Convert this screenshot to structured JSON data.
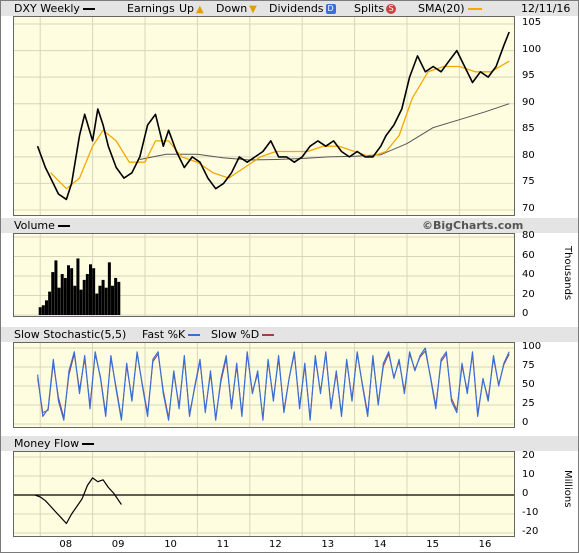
{
  "header": {
    "symbol_label": "DXY Weekly",
    "earnings_label": "Earnings",
    "up_label": "Up",
    "down_label": "Down",
    "dividends_label": "Dividends",
    "dividends_marker": "D",
    "splits_label": "Splits",
    "splits_marker": "S",
    "sma_label": "SMA(20)",
    "date_label": "12/11/16"
  },
  "volume_header": {
    "label": "Volume",
    "watermark": "©BigCharts.com"
  },
  "stoch_header": {
    "label": "Slow Stochastic(5,5)",
    "fast_label": "Fast %K",
    "slow_label": "Slow %D"
  },
  "money_header": {
    "label": "Money Flow"
  },
  "colors": {
    "panel_bg": "#fffde0",
    "header_bg": "#e4e4e4",
    "price": "#000000",
    "sma_short": "#f5a800",
    "sma_long": "#555555",
    "fast_k": "#3a6fd8",
    "slow_d": "#a04040",
    "volume": "#000000",
    "dividend_marker": "#3a6fd8",
    "split_marker": "#d04040",
    "up_marker": "#e0a000"
  },
  "chart_data": [
    {
      "type": "line",
      "panel": "price",
      "ylim": [
        70,
        105
      ],
      "y_ticks": [
        "105",
        "100",
        "95",
        "90",
        "85",
        "80",
        "75",
        "70"
      ],
      "x_ticks": [
        "08",
        "09",
        "10",
        "11",
        "12",
        "13",
        "14",
        "15",
        "16"
      ],
      "last_date": "12/11/16",
      "series": [
        {
          "name": "DXY Weekly",
          "x": [
            2007.95,
            2008.1,
            2008.2,
            2008.35,
            2008.5,
            2008.6,
            2008.75,
            2008.85,
            2009.0,
            2009.1,
            2009.2,
            2009.3,
            2009.45,
            2009.6,
            2009.75,
            2009.9,
            2010.05,
            2010.2,
            2010.35,
            2010.45,
            2010.6,
            2010.75,
            2010.9,
            2011.05,
            2011.2,
            2011.35,
            2011.5,
            2011.65,
            2011.8,
            2011.95,
            2012.1,
            2012.25,
            2012.4,
            2012.55,
            2012.7,
            2012.85,
            2013.0,
            2013.15,
            2013.3,
            2013.45,
            2013.6,
            2013.75,
            2013.9,
            2014.05,
            2014.2,
            2014.35,
            2014.5,
            2014.6,
            2014.75,
            2014.9,
            2015.05,
            2015.2,
            2015.35,
            2015.5,
            2015.65,
            2015.8,
            2015.95,
            2016.1,
            2016.25,
            2016.4,
            2016.55,
            2016.7,
            2016.85,
            2016.95
          ],
          "values": [
            82,
            78,
            76,
            73,
            72,
            75,
            84,
            88,
            83,
            89,
            86,
            82,
            78,
            76,
            77,
            80,
            86,
            88,
            82,
            85,
            81,
            78,
            80,
            79,
            76,
            74,
            75,
            77,
            80,
            79,
            80,
            81,
            83,
            80,
            80,
            79,
            80,
            82,
            83,
            82,
            83,
            81,
            80,
            81,
            80,
            80,
            82,
            84,
            86,
            89,
            95,
            99,
            96,
            97,
            96,
            98,
            100,
            97,
            94,
            96,
            95,
            97,
            101,
            103.5
          ]
        },
        {
          "name": "SMA(20)",
          "x": [
            2008.2,
            2008.5,
            2008.75,
            2009.0,
            2009.2,
            2009.45,
            2009.7,
            2010.0,
            2010.2,
            2010.45,
            2010.7,
            2011.0,
            2011.3,
            2011.6,
            2011.9,
            2012.2,
            2012.5,
            2012.8,
            2013.1,
            2013.4,
            2013.7,
            2014.0,
            2014.3,
            2014.6,
            2014.85,
            2015.1,
            2015.4,
            2015.7,
            2016.0,
            2016.3,
            2016.6,
            2016.95
          ],
          "values": [
            77,
            74,
            76,
            82,
            85,
            83,
            79,
            79,
            83,
            83,
            80,
            79,
            77,
            76,
            78,
            80,
            81,
            81,
            81,
            82,
            82,
            81,
            80,
            81,
            84,
            91,
            96,
            97,
            97,
            96,
            96,
            98
          ]
        },
        {
          "name": "SMA long",
          "x": [
            2009.9,
            2010.4,
            2011.0,
            2011.5,
            2012.0,
            2012.5,
            2013.0,
            2013.5,
            2014.0,
            2014.5,
            2015.0,
            2015.5,
            2016.0,
            2016.5,
            2016.95
          ],
          "values": [
            79.5,
            80.5,
            80.5,
            79.8,
            79.4,
            79.5,
            79.7,
            80.0,
            80.1,
            80.4,
            82.5,
            85.5,
            87,
            88.5,
            90
          ]
        }
      ]
    },
    {
      "type": "bar",
      "panel": "volume",
      "ylabel": "Thousands",
      "ylim": [
        0,
        80
      ],
      "y_ticks": [
        "80",
        "60",
        "40",
        "20",
        "0"
      ],
      "x": [
        2008.0,
        2008.06,
        2008.12,
        2008.18,
        2008.24,
        2008.3,
        2008.36,
        2008.42,
        2008.48,
        2008.54,
        2008.6,
        2008.66,
        2008.72,
        2008.78,
        2008.84,
        2008.9,
        2008.96,
        2009.02,
        2009.08,
        2009.14,
        2009.2,
        2009.26,
        2009.32,
        2009.38,
        2009.44,
        2009.5
      ],
      "values": [
        8,
        10,
        15,
        24,
        44,
        56,
        28,
        42,
        38,
        51,
        48,
        30,
        58,
        26,
        36,
        42,
        52,
        48,
        22,
        30,
        36,
        28,
        54,
        30,
        38,
        34
      ]
    },
    {
      "type": "line",
      "panel": "stochastic",
      "ylim": [
        0,
        100
      ],
      "y_ticks": [
        "100",
        "75",
        "50",
        "25",
        "0"
      ],
      "series": [
        {
          "name": "Fast %K",
          "x": [
            2007.95,
            2008.05,
            2008.15,
            2008.25,
            2008.35,
            2008.45,
            2008.55,
            2008.65,
            2008.75,
            2008.85,
            2008.95,
            2009.05,
            2009.15,
            2009.25,
            2009.35,
            2009.45,
            2009.55,
            2009.65,
            2009.75,
            2009.85,
            2009.95,
            2010.05,
            2010.15,
            2010.25,
            2010.35,
            2010.45,
            2010.55,
            2010.65,
            2010.75,
            2010.85,
            2010.95,
            2011.05,
            2011.15,
            2011.25,
            2011.35,
            2011.45,
            2011.55,
            2011.65,
            2011.75,
            2011.85,
            2011.95,
            2012.05,
            2012.15,
            2012.25,
            2012.35,
            2012.45,
            2012.55,
            2012.65,
            2012.75,
            2012.85,
            2012.95,
            2013.05,
            2013.15,
            2013.25,
            2013.35,
            2013.45,
            2013.55,
            2013.65,
            2013.75,
            2013.85,
            2013.95,
            2014.05,
            2014.15,
            2014.25,
            2014.35,
            2014.45,
            2014.55,
            2014.65,
            2014.75,
            2014.85,
            2014.95,
            2015.05,
            2015.15,
            2015.25,
            2015.35,
            2015.45,
            2015.55,
            2015.65,
            2015.75,
            2015.85,
            2015.95,
            2016.05,
            2016.15,
            2016.25,
            2016.35,
            2016.45,
            2016.55,
            2016.65,
            2016.75,
            2016.85,
            2016.95
          ],
          "values": [
            65,
            10,
            20,
            85,
            30,
            5,
            70,
            95,
            40,
            90,
            20,
            95,
            60,
            10,
            90,
            45,
            5,
            80,
            30,
            95,
            50,
            10,
            85,
            95,
            40,
            5,
            70,
            20,
            90,
            10,
            50,
            85,
            15,
            70,
            5,
            60,
            90,
            20,
            80,
            10,
            95,
            40,
            70,
            5,
            85,
            30,
            90,
            15,
            60,
            95,
            20,
            80,
            5,
            90,
            40,
            95,
            20,
            70,
            10,
            85,
            30,
            95,
            50,
            10,
            90,
            25,
            80,
            95,
            60,
            85,
            40,
            95,
            70,
            90,
            100,
            60,
            20,
            85,
            95,
            30,
            15,
            80,
            40,
            95,
            10,
            60,
            30,
            90,
            50,
            80,
            95
          ]
        },
        {
          "name": "Slow %D",
          "x": [
            2007.95,
            2008.05,
            2008.15,
            2008.25,
            2008.35,
            2008.45,
            2008.55,
            2008.65,
            2008.75,
            2008.85,
            2008.95,
            2009.05,
            2009.15,
            2009.25,
            2009.35,
            2009.45,
            2009.55,
            2009.65,
            2009.75,
            2009.85,
            2009.95,
            2010.05,
            2010.15,
            2010.25,
            2010.35,
            2010.45,
            2010.55,
            2010.65,
            2010.75,
            2010.85,
            2010.95,
            2011.05,
            2011.15,
            2011.25,
            2011.35,
            2011.45,
            2011.55,
            2011.65,
            2011.75,
            2011.85,
            2011.95,
            2012.05,
            2012.15,
            2012.25,
            2012.35,
            2012.45,
            2012.55,
            2012.65,
            2012.75,
            2012.85,
            2012.95,
            2013.05,
            2013.15,
            2013.25,
            2013.35,
            2013.45,
            2013.55,
            2013.65,
            2013.75,
            2013.85,
            2013.95,
            2014.05,
            2014.15,
            2014.25,
            2014.35,
            2014.45,
            2014.55,
            2014.65,
            2014.75,
            2014.85,
            2014.95,
            2015.05,
            2015.15,
            2015.25,
            2015.35,
            2015.45,
            2015.55,
            2015.65,
            2015.75,
            2015.85,
            2015.95,
            2016.05,
            2016.15,
            2016.25,
            2016.35,
            2016.45,
            2016.55,
            2016.65,
            2016.75,
            2016.85,
            2016.95
          ],
          "values": [
            60,
            15,
            18,
            80,
            35,
            8,
            65,
            92,
            45,
            86,
            25,
            92,
            62,
            14,
            86,
            48,
            8,
            76,
            34,
            92,
            52,
            14,
            82,
            92,
            44,
            8,
            66,
            24,
            86,
            14,
            48,
            82,
            18,
            66,
            8,
            56,
            86,
            24,
            76,
            14,
            92,
            42,
            66,
            8,
            82,
            34,
            86,
            18,
            60,
            92,
            24,
            76,
            8,
            86,
            42,
            92,
            24,
            66,
            14,
            82,
            34,
            92,
            52,
            14,
            86,
            28,
            76,
            92,
            62,
            82,
            44,
            92,
            72,
            88,
            96,
            62,
            24,
            82,
            92,
            34,
            18,
            76,
            44,
            92,
            14,
            58,
            34,
            86,
            52,
            78,
            92
          ]
        }
      ]
    },
    {
      "type": "line",
      "panel": "money_flow",
      "ylabel": "Millions",
      "ylim": [
        -20,
        20
      ],
      "y_ticks": [
        "20",
        "10",
        "0",
        "-10",
        "-20"
      ],
      "series": [
        {
          "name": "Money Flow",
          "x": [
            2007.9,
            2008.0,
            2008.1,
            2008.2,
            2008.3,
            2008.4,
            2008.5,
            2008.6,
            2008.7,
            2008.8,
            2008.9,
            2009.0,
            2009.1,
            2009.2,
            2009.3,
            2009.4,
            2009.5,
            2009.55
          ],
          "values": [
            0,
            -1,
            -3,
            -6,
            -9,
            -12,
            -15,
            -10,
            -6,
            -2,
            5,
            9,
            7,
            8,
            4,
            1,
            -3,
            -5
          ]
        }
      ]
    }
  ]
}
